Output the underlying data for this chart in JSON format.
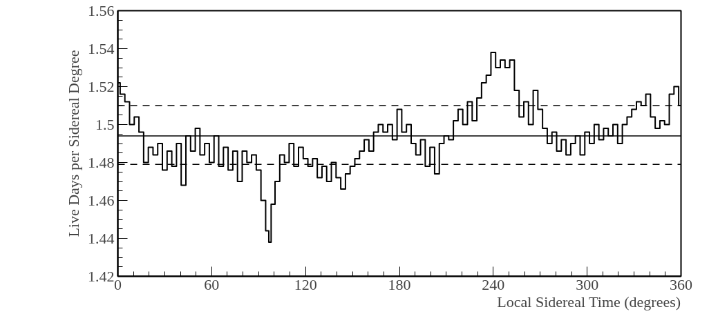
{
  "chart_data": {
    "type": "step",
    "xlabel": "Local Sidereal Time (degrees)",
    "ylabel": "Live Days per Sidereal Degree",
    "x": [
      0,
      3,
      6,
      9,
      12,
      15,
      18,
      21,
      24,
      27,
      30,
      33,
      36,
      39,
      42,
      45,
      48,
      51,
      54,
      57,
      60,
      63,
      66,
      69,
      72,
      75,
      78,
      81,
      84,
      87,
      90,
      93,
      96,
      97,
      99,
      102,
      105,
      108,
      111,
      114,
      117,
      120,
      123,
      126,
      129,
      132,
      135,
      138,
      141,
      144,
      147,
      150,
      153,
      156,
      159,
      162,
      165,
      168,
      171,
      174,
      177,
      180,
      183,
      186,
      189,
      192,
      195,
      198,
      201,
      204,
      207,
      210,
      213,
      216,
      219,
      222,
      225,
      228,
      231,
      234,
      237,
      240,
      243,
      246,
      249,
      252,
      255,
      258,
      261,
      264,
      267,
      270,
      273,
      276,
      279,
      282,
      285,
      288,
      291,
      294,
      297,
      300,
      303,
      306,
      309,
      312,
      315,
      318,
      321,
      324,
      327,
      330,
      333,
      336,
      339,
      342,
      345,
      348,
      351,
      354,
      357,
      360
    ],
    "series": [
      {
        "color": "#000000",
        "values": [
          1.522,
          1.516,
          1.512,
          1.5,
          1.504,
          1.496,
          1.48,
          1.488,
          1.484,
          1.49,
          1.476,
          1.486,
          1.478,
          1.49,
          1.468,
          1.494,
          1.486,
          1.498,
          1.484,
          1.49,
          1.48,
          1.494,
          1.478,
          1.488,
          1.476,
          1.486,
          1.47,
          1.486,
          1.48,
          1.484,
          1.476,
          1.46,
          1.444,
          1.438,
          1.458,
          1.47,
          1.484,
          1.48,
          1.49,
          1.478,
          1.488,
          1.482,
          1.478,
          1.482,
          1.472,
          1.478,
          1.47,
          1.48,
          1.472,
          1.466,
          1.474,
          1.478,
          1.482,
          1.486,
          1.492,
          1.486,
          1.496,
          1.5,
          1.496,
          1.5,
          1.492,
          1.508,
          1.496,
          1.5,
          1.49,
          1.484,
          1.492,
          1.478,
          1.488,
          1.474,
          1.49,
          1.494,
          1.492,
          1.502,
          1.508,
          1.5,
          1.512,
          1.502,
          1.514,
          1.522,
          1.526,
          1.538,
          1.53,
          1.534,
          1.53,
          1.534,
          1.518,
          1.504,
          1.512,
          1.5,
          1.518,
          1.508,
          1.498,
          1.49,
          1.496,
          1.486,
          1.492,
          1.484,
          1.49,
          1.494,
          1.484,
          1.496,
          1.49,
          1.5,
          1.492,
          1.498,
          1.494,
          1.5,
          1.49,
          1.5,
          1.504,
          1.508,
          1.512,
          1.51,
          1.516,
          1.504,
          1.498,
          1.502,
          1.5,
          1.516,
          1.52,
          1.51
        ]
      }
    ],
    "xlim": [
      0,
      360
    ],
    "xticks": [
      0,
      60,
      120,
      180,
      240,
      300,
      360
    ],
    "ylim": [
      1.42,
      1.56
    ],
    "yticks": [
      {
        "value": 1.42,
        "label": "1.42"
      },
      {
        "value": 1.44,
        "label": "1.44"
      },
      {
        "value": 1.46,
        "label": "1.46"
      },
      {
        "value": 1.48,
        "label": "1.48"
      },
      {
        "value": 1.5,
        "label": "1.5"
      },
      {
        "value": 1.52,
        "label": "1.52"
      },
      {
        "value": 1.54,
        "label": "1.54"
      },
      {
        "value": 1.56,
        "label": "1.56"
      }
    ],
    "ref_lines": [
      {
        "axis": "y",
        "value": 1.494,
        "line_style": "solid"
      },
      {
        "axis": "y",
        "value": 1.51,
        "line_style": "dashed"
      },
      {
        "axis": "y",
        "value": 1.479,
        "line_style": "dashed"
      }
    ]
  }
}
